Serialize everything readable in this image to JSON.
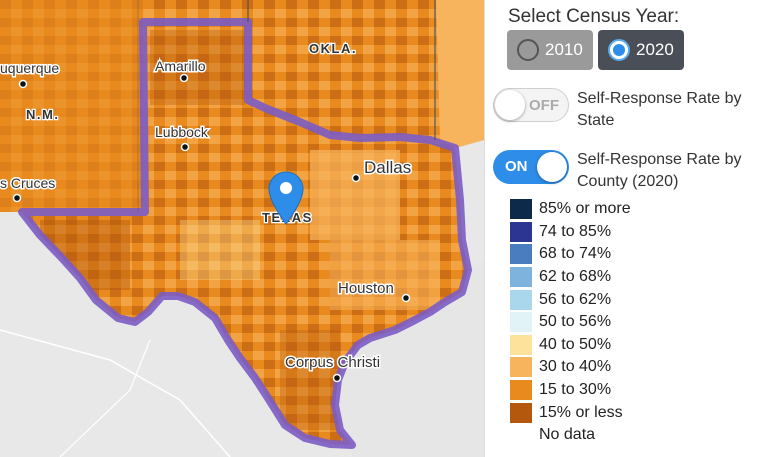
{
  "map": {
    "state_label": "TEXAS",
    "neighbor_state_label": "OKLA.",
    "cities": [
      "Amarillo",
      "Lubbock",
      "Dallas",
      "Houston",
      "Corpus Christi",
      "uquerque",
      "N.M.",
      "s Cruces"
    ],
    "marker_icon": "map-pin-icon",
    "outline_color": "#7b5cc4"
  },
  "panel": {
    "title": "Select Census Year:",
    "years": [
      {
        "label": "2010",
        "selected": false
      },
      {
        "label": "2020",
        "selected": true
      }
    ],
    "toggle_state": {
      "state": "OFF",
      "label": "Self-Response Rate by State"
    },
    "toggle_county": {
      "state": "ON",
      "label": "Self-Response Rate by County (2020)"
    }
  },
  "legend": [
    {
      "label": "85% or more",
      "color": "#0d2a4a"
    },
    {
      "label": "74 to 85%",
      "color": "#2c3592"
    },
    {
      "label": "68 to 74%",
      "color": "#4a7cc0"
    },
    {
      "label": "62 to 68%",
      "color": "#7db3dc"
    },
    {
      "label": "56 to 62%",
      "color": "#a9d8ec"
    },
    {
      "label": "50 to 56%",
      "color": "#e2f3f8"
    },
    {
      "label": "40 to 50%",
      "color": "#fde29b"
    },
    {
      "label": "30 to 40%",
      "color": "#f8b45c"
    },
    {
      "label": "15 to 30%",
      "color": "#e88a1e"
    },
    {
      "label": "15% or less",
      "color": "#b4580e"
    },
    {
      "label": "No data",
      "color": "#ffffff"
    }
  ]
}
